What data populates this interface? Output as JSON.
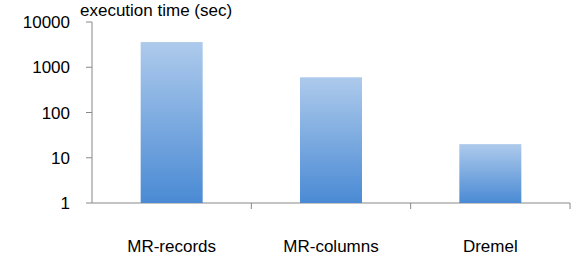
{
  "chart_data": {
    "type": "bar",
    "title": "execution time (sec)",
    "categories": [
      "MR-records",
      "MR-columns",
      "Dremel"
    ],
    "values": [
      3600,
      600,
      20
    ],
    "color": "#4a8ad4",
    "log": "y",
    "ylim": [
      1,
      10000
    ],
    "yticks": [
      1,
      10,
      100,
      1000,
      10000
    ],
    "grid": false
  }
}
